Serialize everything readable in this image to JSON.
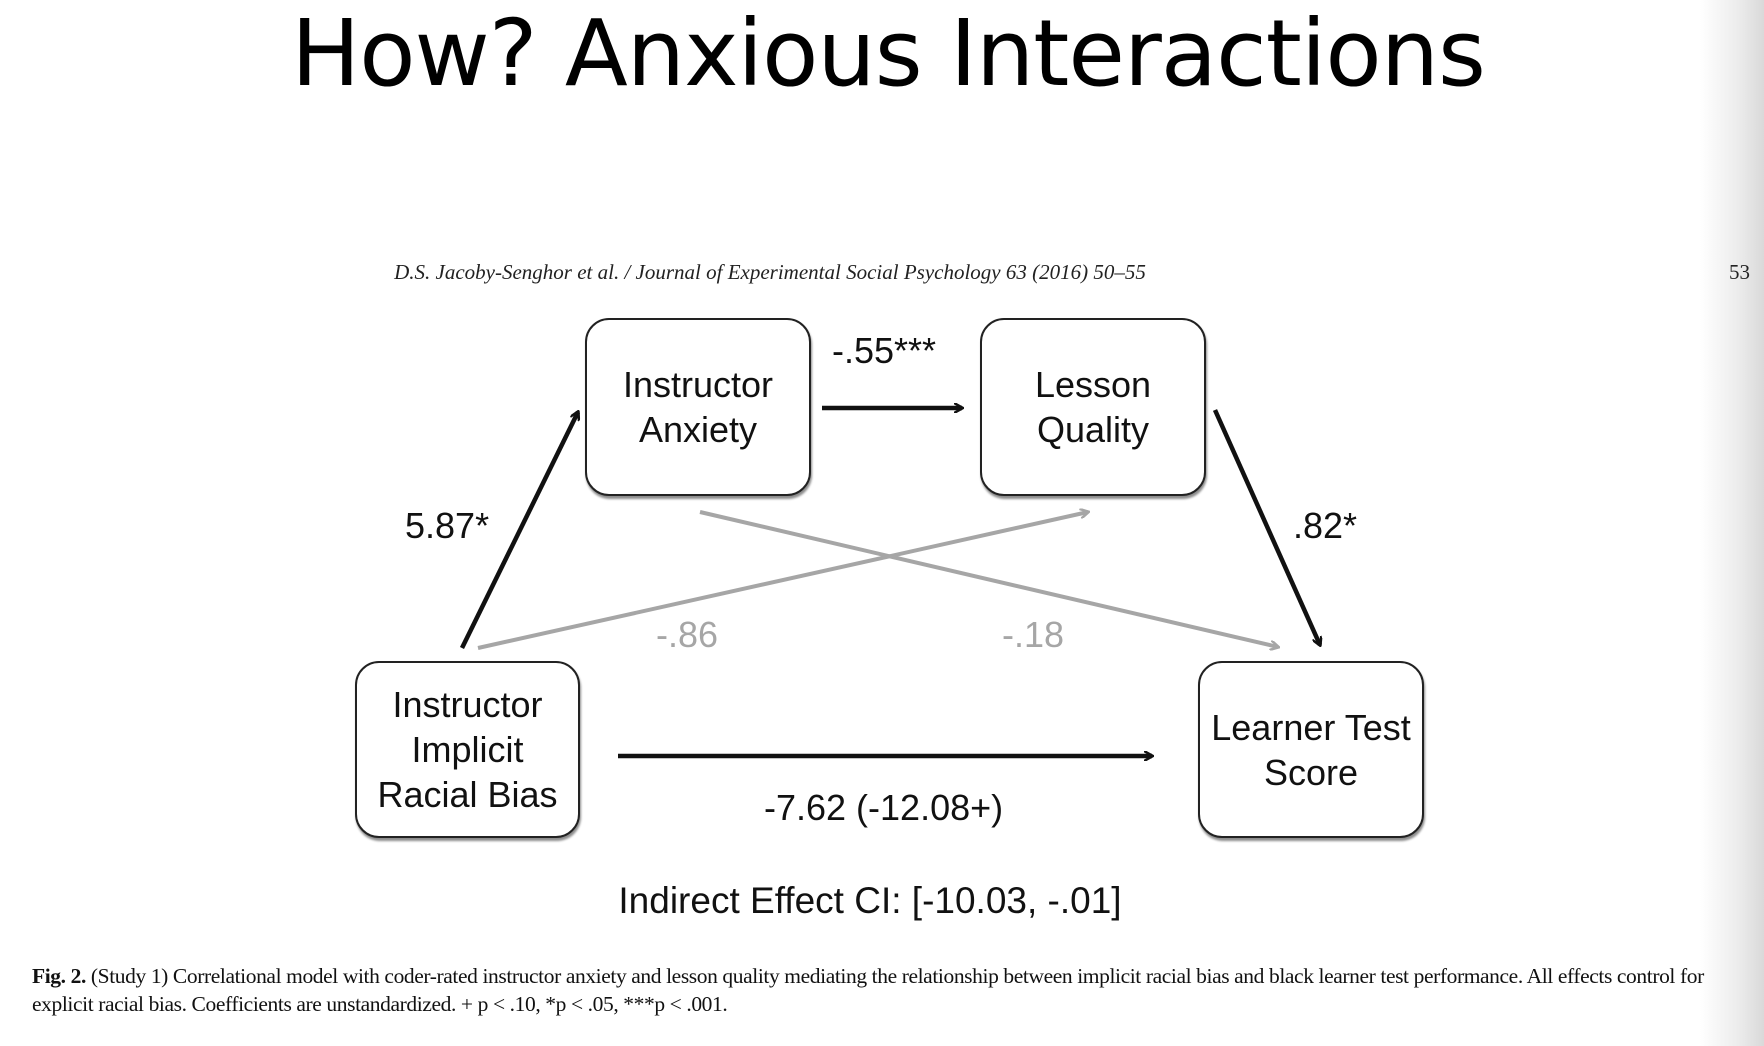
{
  "slide": {
    "title": "How? Anxious Interactions"
  },
  "paper": {
    "journal_header": "D.S. Jacoby-Senghor et al. / Journal of Experimental Social Psychology 63 (2016) 50–55",
    "page_number": "53"
  },
  "diagram": {
    "nodes": {
      "instructor_anxiety": "Instructor\nAnxiety",
      "lesson_quality": "Lesson\nQuality",
      "implicit_bias": "Instructor\nImplicit\nRacial Bias",
      "learner_score": "Learner Test\nScore"
    },
    "coefficients": {
      "bias_to_anxiety": "5.87*",
      "anxiety_to_quality": "-.55***",
      "quality_to_score": ".82*",
      "bias_to_quality": "-.86",
      "anxiety_to_score": "-.18",
      "bias_to_score": "-7.62 (-12.08+)"
    },
    "indirect_effect": "Indirect Effect CI: [-10.03, -.01]",
    "colors": {
      "significant_path": "#111111",
      "nonsignificant_path": "#a6a6a6"
    }
  },
  "caption": {
    "label": "Fig. 2.",
    "text": " (Study 1) Correlational model with coder-rated instructor anxiety and lesson quality mediating the relationship between implicit racial bias and black learner test performance. All effects control for explicit racial bias. Coefficients are unstandardized. + p < .10, *p < .05, ***p < .001."
  }
}
